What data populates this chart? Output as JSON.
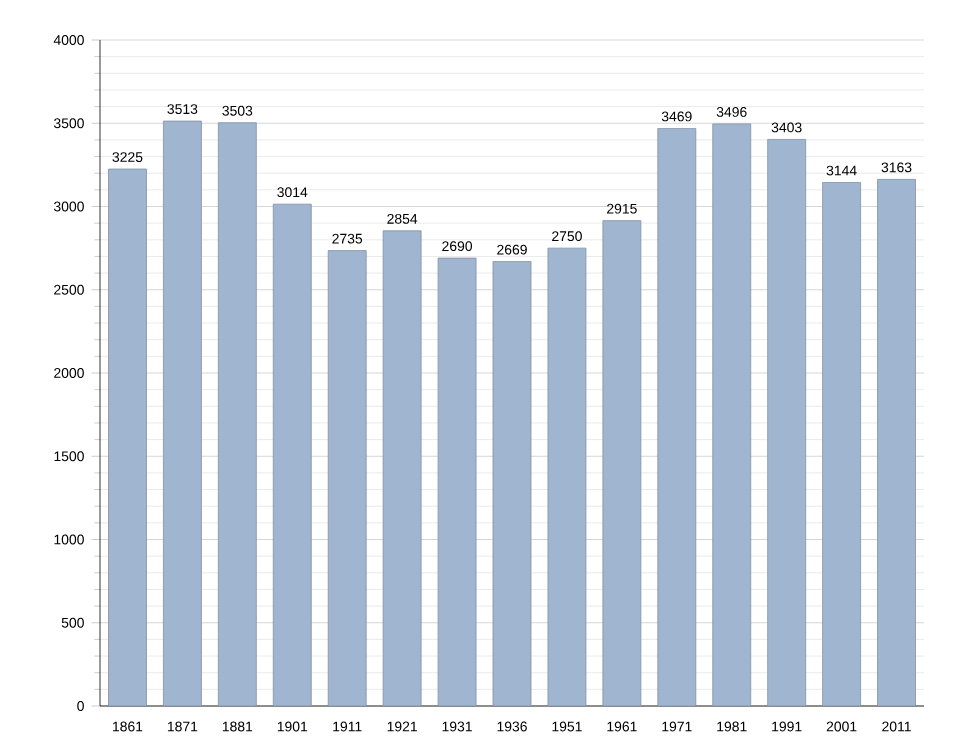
{
  "chart_data": {
    "type": "bar",
    "categories": [
      "1861",
      "1871",
      "1881",
      "1901",
      "1911",
      "1921",
      "1931",
      "1936",
      "1951",
      "1961",
      "1971",
      "1981",
      "1991",
      "2001",
      "2011"
    ],
    "values": [
      3225,
      3513,
      3503,
      3014,
      2735,
      2854,
      2690,
      2669,
      2750,
      2915,
      3469,
      3496,
      3403,
      3144,
      3163
    ],
    "color": "#a0b5cf",
    "ylim": [
      0,
      4000
    ],
    "yticks": [
      0,
      500,
      1000,
      1500,
      2000,
      2500,
      3000,
      3500,
      4000
    ],
    "grid": "y",
    "data_labels": true
  }
}
